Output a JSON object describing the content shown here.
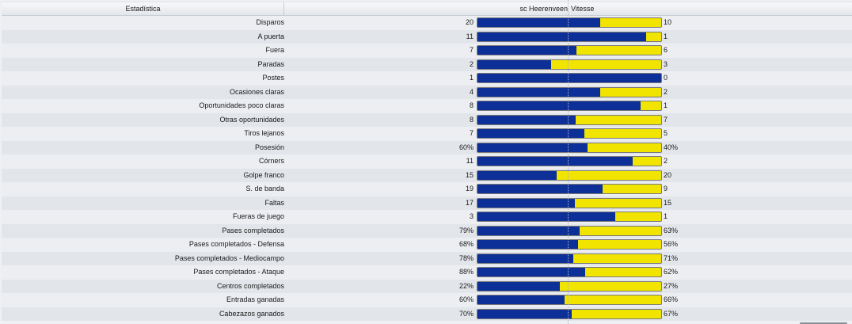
{
  "header": {
    "stat": "Estadística",
    "home": "sc Heerenveen",
    "away": "Vitesse"
  },
  "colors": {
    "home": "#0c2f98",
    "away": "#f1e400"
  },
  "rows": [
    {
      "label": "Disparos",
      "home": "20",
      "away": "10",
      "home_share": 0.667
    },
    {
      "label": "A puerta",
      "home": "11",
      "away": "1",
      "home_share": 0.917
    },
    {
      "label": "Fuera",
      "home": "7",
      "away": "6",
      "home_share": 0.538
    },
    {
      "label": "Paradas",
      "home": "2",
      "away": "3",
      "home_share": 0.4
    },
    {
      "label": "Postes",
      "home": "1",
      "away": "0",
      "home_share": 1.0
    },
    {
      "label": "Ocasiones claras",
      "home": "4",
      "away": "2",
      "home_share": 0.667
    },
    {
      "label": "Oportunidades poco claras",
      "home": "8",
      "away": "1",
      "home_share": 0.889
    },
    {
      "label": "Otras oportunidades",
      "home": "8",
      "away": "7",
      "home_share": 0.533
    },
    {
      "label": "Tiros lejanos",
      "home": "7",
      "away": "5",
      "home_share": 0.583
    },
    {
      "label": "Posesión",
      "home": "60%",
      "away": "40%",
      "home_share": 0.6
    },
    {
      "label": "Córners",
      "home": "11",
      "away": "2",
      "home_share": 0.846
    },
    {
      "label": "Golpe franco",
      "home": "15",
      "away": "20",
      "home_share": 0.429
    },
    {
      "label": "S. de banda",
      "home": "19",
      "away": "9",
      "home_share": 0.679
    },
    {
      "label": "Faltas",
      "home": "17",
      "away": "15",
      "home_share": 0.531
    },
    {
      "label": "Fueras de juego",
      "home": "3",
      "away": "1",
      "home_share": 0.75
    },
    {
      "label": "Pases completados",
      "home": "79%",
      "away": "63%",
      "home_share": 0.556
    },
    {
      "label": "Pases completados - Defensa",
      "home": "68%",
      "away": "56%",
      "home_share": 0.548
    },
    {
      "label": "Pases completados - Mediocampo",
      "home": "78%",
      "away": "71%",
      "home_share": 0.523
    },
    {
      "label": "Pases completados - Ataque",
      "home": "88%",
      "away": "62%",
      "home_share": 0.587
    },
    {
      "label": "Centros completados",
      "home": "22%",
      "away": "27%",
      "home_share": 0.449
    },
    {
      "label": "Entradas ganadas",
      "home": "60%",
      "away": "66%",
      "home_share": 0.476
    },
    {
      "label": "Cabezazos ganados",
      "home": "70%",
      "away": "67%",
      "home_share": 0.511
    }
  ]
}
